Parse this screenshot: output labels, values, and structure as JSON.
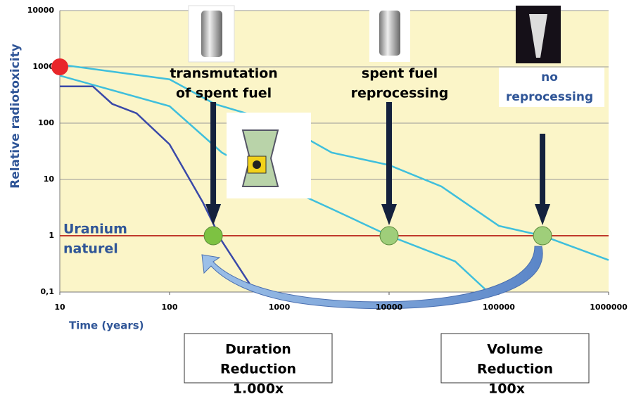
{
  "chart_data": {
    "type": "line",
    "y_label": "Relative radiotoxicity",
    "x_label": "Time (years)",
    "log_x": true,
    "log_y": true,
    "grid": true,
    "xlim": [
      10,
      1000000
    ],
    "xticks": [
      10,
      100,
      1000,
      10000,
      100000,
      1000000
    ],
    "ylim": [
      0.1,
      10000
    ],
    "yticks": [
      10000,
      1000,
      100,
      10,
      1,
      {
        "value": 0.1,
        "label": "0,1"
      }
    ],
    "series": [
      {
        "color": "#3a49a8",
        "x": [
          10,
          20,
          30,
          50,
          100,
          200,
          300,
          600
        ],
        "values": [
          450,
          450,
          220,
          150,
          42,
          4,
          0.8,
          0.1
        ]
      },
      {
        "color": "#3fbfdc",
        "x": [
          10,
          100,
          300,
          1000,
          3000,
          10000,
          40000,
          80000
        ],
        "values": [
          700,
          200,
          30,
          8,
          3,
          1,
          0.35,
          0.1
        ]
      },
      {
        "color": "#3fbfdc",
        "x": [
          10,
          100,
          260,
          1000,
          3000,
          10000,
          30000,
          100000,
          250000,
          1000000
        ],
        "values": [
          1100,
          600,
          218,
          100,
          30,
          18,
          7.5,
          1.5,
          1,
          0.37
        ]
      }
    ],
    "reference_line": {
      "y": 1,
      "color": "#c0392b",
      "label": [
        "Uranium",
        "naturel"
      ]
    },
    "markers": [
      {
        "x": 10,
        "y": 1000,
        "color": "#e8262a"
      },
      {
        "x": 250,
        "y": 1,
        "color": "#7dc242"
      },
      {
        "x": 10000,
        "y": 1,
        "color": "#9fce7a"
      },
      {
        "x": 250000,
        "y": 1,
        "color": "#9fce7a"
      }
    ],
    "annotations": [
      {
        "x": 250,
        "lines": [
          "transmutation",
          "of spent fuel"
        ]
      },
      {
        "x": 10000,
        "lines": [
          "spent fuel",
          "reprocessing"
        ]
      },
      {
        "x": 250000,
        "lines": [
          "no",
          "reprocessing"
        ]
      }
    ],
    "boxes": [
      {
        "lines": [
          "Duration",
          "Reduction"
        ],
        "factor": "1.000x"
      },
      {
        "lines": [
          "Volume",
          "Reduction"
        ],
        "factor": "100x"
      }
    ]
  }
}
